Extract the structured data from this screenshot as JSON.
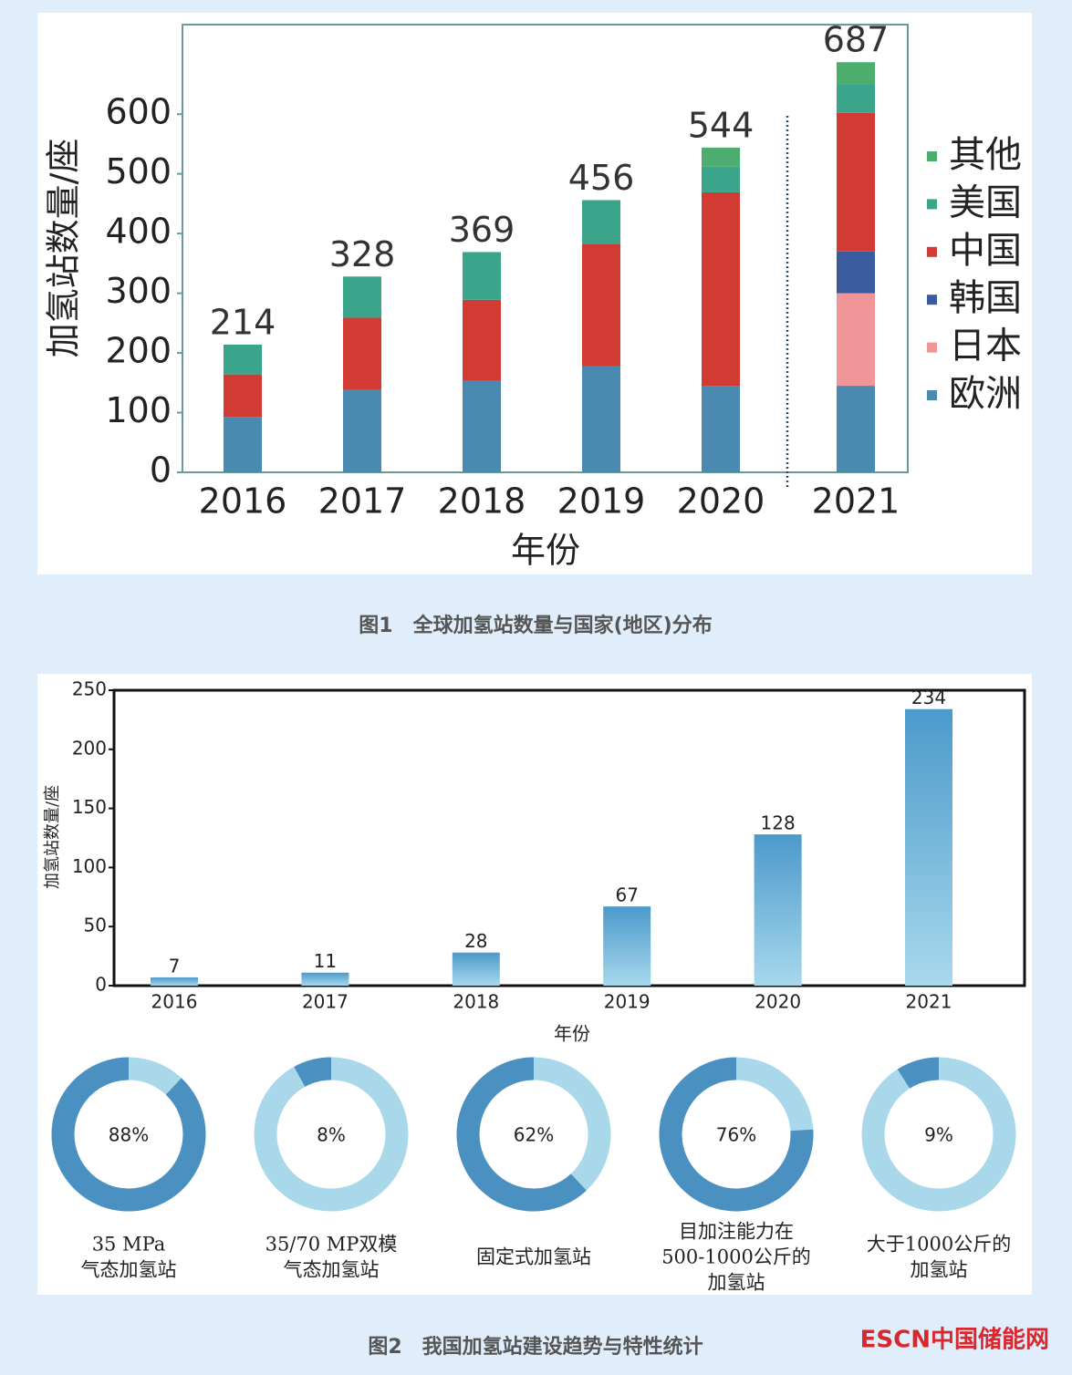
{
  "chart_data": [
    {
      "type": "stacked-bar",
      "xlabel": "年份",
      "ylabel": "加氢站数量/座",
      "categories": [
        "2016",
        "2017",
        "2018",
        "2019",
        "2020",
        "2021"
      ],
      "series": [
        {
          "name": "欧洲",
          "color": "#4a8ab0",
          "values": [
            93,
            139,
            153,
            178,
            145,
            145
          ]
        },
        {
          "name": "日本",
          "color": "#f09598",
          "values": [
            null,
            null,
            null,
            null,
            null,
            155
          ]
        },
        {
          "name": "韩国",
          "color": "#3a5c9e",
          "values": [
            null,
            null,
            null,
            null,
            null,
            70
          ]
        },
        {
          "name": "中国",
          "color": "#d23a34",
          "values": [
            71,
            120,
            136,
            205,
            324,
            232
          ]
        },
        {
          "name": "美国",
          "color": "#3ba58c",
          "values": [
            50,
            69,
            80,
            73,
            43,
            48
          ]
        },
        {
          "name": "其他",
          "color": "#4cad6e",
          "values": [
            null,
            null,
            null,
            null,
            32,
            37
          ]
        }
      ],
      "totals": [
        214,
        328,
        369,
        456,
        544,
        687
      ],
      "ylim": [
        0,
        750
      ],
      "yticks": [
        0,
        100,
        200,
        300,
        400,
        500,
        600
      ]
    },
    {
      "type": "bar",
      "xlabel": "年份",
      "ylabel": "加氢站数量/座",
      "categories": [
        "2016",
        "2017",
        "2018",
        "2019",
        "2020",
        "2021"
      ],
      "values": [
        7,
        11,
        28,
        67,
        128,
        234
      ],
      "color": "#4b9acb",
      "ylim": [
        0,
        250
      ],
      "yticks": [
        0,
        50,
        100,
        150,
        200,
        250
      ]
    },
    {
      "type": "donut",
      "values": [
        88
      ],
      "value_labels": [
        "88%"
      ],
      "label": [
        "35 MPa",
        "气态加氢站"
      ],
      "color": "#4a90c0"
    },
    {
      "type": "donut",
      "values": [
        8
      ],
      "value_labels": [
        "8%"
      ],
      "label": [
        "35/70 MP双模",
        "气态加氢站"
      ],
      "color": "#4a90c0"
    },
    {
      "type": "donut",
      "values": [
        62
      ],
      "value_labels": [
        "62%"
      ],
      "label": [
        "固定式加氢站"
      ],
      "color": "#4a90c0"
    },
    {
      "type": "donut",
      "values": [
        76
      ],
      "value_labels": [
        "76%"
      ],
      "label": [
        "目加注能力在",
        "500-1000公斤的",
        "加氢站"
      ],
      "color": "#4a90c0"
    },
    {
      "type": "donut",
      "values": [
        9
      ],
      "value_labels": [
        "9%"
      ],
      "label": [
        "大于1000公斤的",
        "加氢站"
      ],
      "color": "#4a90c0"
    }
  ],
  "captions": [
    "图1　全球加氢站数量与国家(地区)分布",
    "图2　我国加氢站建设趋势与特性统计"
  ],
  "logo": "ESCN中国储能网"
}
